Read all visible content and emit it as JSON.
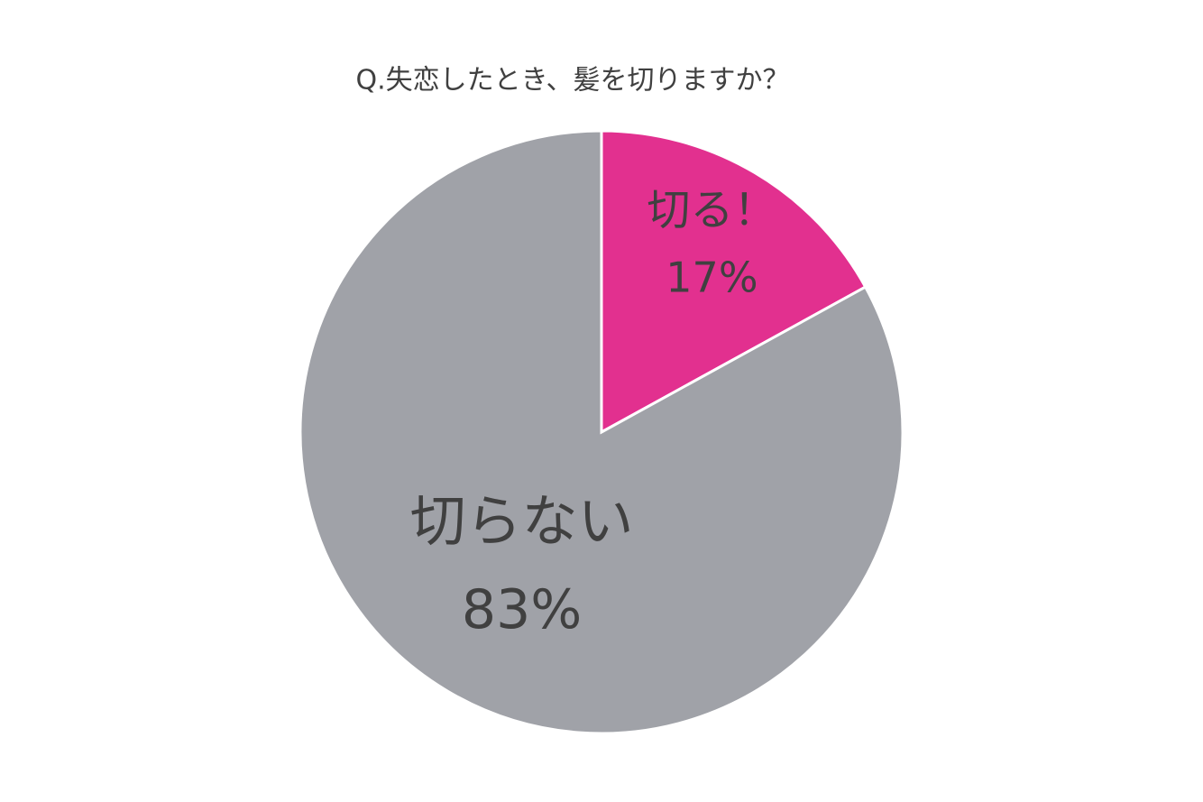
{
  "chart_data": {
    "type": "pie",
    "title": "Q.失恋したとき、髪を切りますか？",
    "categories": [
      "切る！",
      "切らない"
    ],
    "values": [
      17,
      83
    ],
    "value_labels": [
      "17%",
      "83%"
    ],
    "colors": [
      "#e2308f",
      "#a0a2a8"
    ]
  }
}
